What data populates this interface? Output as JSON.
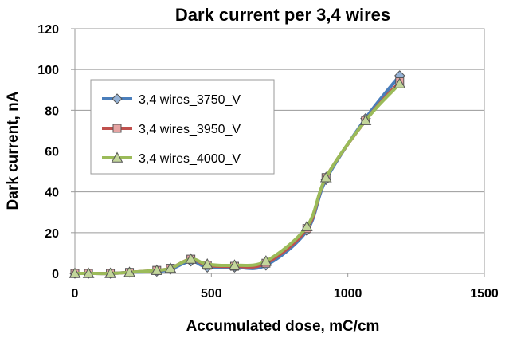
{
  "chart_data": {
    "type": "line",
    "title": "Dark current per 3,4 wires",
    "xlabel": "Accumulated dose, mC/cm",
    "ylabel": "Dark current, nA",
    "xlim": [
      0,
      1500
    ],
    "ylim": [
      0,
      120
    ],
    "xticks": [
      0,
      500,
      1000,
      1500
    ],
    "yticks": [
      0,
      20,
      40,
      60,
      80,
      100,
      120
    ],
    "grid": "horizontal",
    "legend_position": "center-left",
    "series": [
      {
        "name": "3,4 wires_3750_V",
        "color": "#4a7ebb",
        "marker": "diamond",
        "x": [
          0,
          50,
          130,
          200,
          300,
          350,
          425,
          485,
          585,
          700,
          850,
          920,
          1065,
          1190
        ],
        "y": [
          0,
          0,
          0,
          0.5,
          1,
          2,
          6,
          3,
          3,
          4,
          21,
          46,
          76,
          97
        ]
      },
      {
        "name": "3,4 wires_3950_V",
        "color": "#c0504d",
        "marker": "square",
        "x": [
          0,
          50,
          130,
          200,
          300,
          350,
          425,
          485,
          585,
          700,
          850,
          920,
          1065,
          1190
        ],
        "y": [
          0,
          0,
          0,
          0.5,
          1.5,
          2.5,
          7,
          4,
          3.5,
          5,
          22,
          47,
          75,
          94
        ]
      },
      {
        "name": "3,4 wires_4000_V",
        "color": "#9bbb59",
        "marker": "triangle",
        "x": [
          0,
          50,
          130,
          200,
          300,
          350,
          425,
          485,
          585,
          700,
          850,
          920,
          1065,
          1190
        ],
        "y": [
          0,
          0,
          0,
          0.5,
          1.5,
          2.5,
          7,
          4.5,
          4,
          6,
          23,
          47,
          75,
          93
        ]
      }
    ]
  }
}
